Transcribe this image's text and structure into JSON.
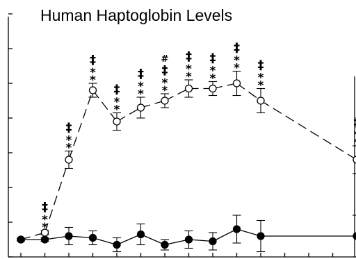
{
  "chart_data": {
    "type": "line",
    "title": "Human Haptoglobin Levels",
    "xlabel": "",
    "ylabel": "",
    "x_points": 15,
    "ylim": [
      0,
      7
    ],
    "grid": false,
    "legend": "none",
    "series": [
      {
        "marker": "open-circle",
        "line_style": "dashed",
        "values": [
          0.5,
          0.7,
          2.8,
          4.8,
          3.9,
          4.3,
          4.5,
          4.85,
          4.85,
          5.0,
          4.5,
          null,
          null,
          null,
          2.8
        ],
        "errors": [
          0.04,
          0.06,
          0.25,
          0.2,
          0.25,
          0.3,
          0.2,
          0.25,
          0.2,
          0.35,
          0.35,
          null,
          null,
          null,
          0.4
        ],
        "annotations": [
          "",
          "‡\n*\n*",
          "‡\n*\n*",
          "‡\n*\n*",
          "‡\n*\n*",
          "‡\n*\n*",
          "#\n‡\n*\n*",
          "‡\n*\n*",
          "‡\n*\n*",
          "‡\n*\n*",
          "‡\n*\n*",
          "",
          "",
          "",
          "‡\n*\n*"
        ]
      },
      {
        "marker": "filled-circle",
        "line_style": "solid",
        "values": [
          0.5,
          0.5,
          0.6,
          0.55,
          0.35,
          0.65,
          0.35,
          0.5,
          0.45,
          0.8,
          0.6,
          null,
          null,
          null,
          0.6
        ],
        "errors": [
          0.04,
          0.05,
          0.25,
          0.2,
          0.2,
          0.3,
          0.15,
          0.25,
          0.25,
          0.4,
          0.45,
          null,
          null,
          null,
          0.6
        ]
      }
    ]
  }
}
